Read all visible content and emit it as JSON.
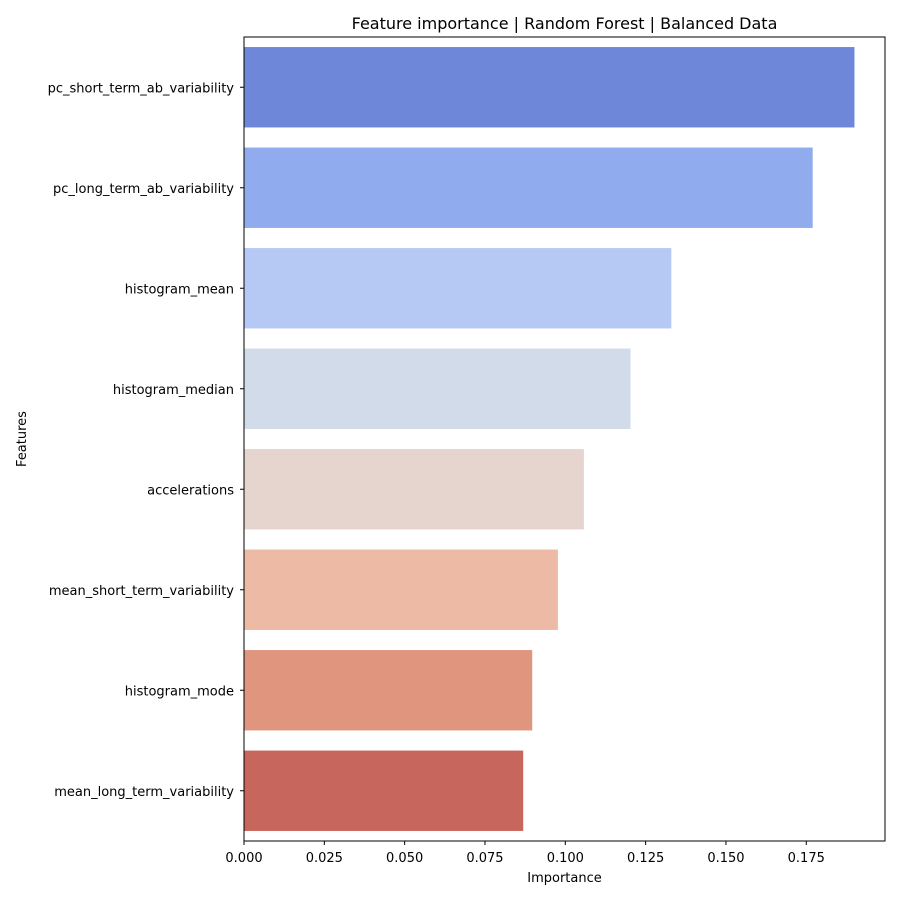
{
  "chart_data": {
    "type": "bar",
    "orientation": "horizontal",
    "title": "Feature importance | Random Forest | Balanced Data",
    "xlabel": "Importance",
    "ylabel": "Features",
    "xlim": [
      0,
      0.1995
    ],
    "xticks": [
      0.0,
      0.025,
      0.05,
      0.075,
      0.1,
      0.125,
      0.15,
      0.175
    ],
    "xtick_labels": [
      "0.000",
      "0.025",
      "0.050",
      "0.075",
      "0.100",
      "0.125",
      "0.150",
      "0.175"
    ],
    "grid": false,
    "legend": "none",
    "categories": [
      "pc_short_term_ab_variability",
      "pc_long_term_ab_variability",
      "histogram_mean",
      "histogram_median",
      "accelerations",
      "mean_short_term_variability",
      "histogram_mode",
      "mean_long_term_variability"
    ],
    "values": [
      0.19,
      0.177,
      0.133,
      0.1203,
      0.1058,
      0.0977,
      0.0897,
      0.0869
    ],
    "colors": [
      "#6f87d8",
      "#90acee",
      "#b6c9f4",
      "#d2dbe9",
      "#e6d5ce",
      "#ecbaa5",
      "#e0957e",
      "#c7665c"
    ]
  }
}
